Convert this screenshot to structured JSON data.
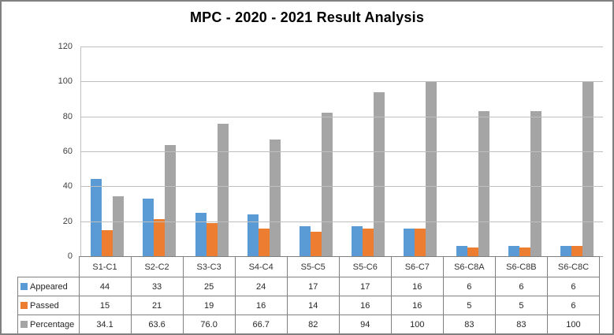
{
  "colors": {
    "appeared": "#5B9BD5",
    "passed": "#ED7D31",
    "percentage": "#A5A5A5",
    "gridline": "#BFBFBF",
    "axis_line": "#A6A6A6",
    "table_border": "#808080",
    "frame_border": "#808080",
    "title_text": "#000000",
    "axis_text": "#404040"
  },
  "chart_data": {
    "type": "bar",
    "title": "MPC - 2020 - 2021 Result Analysis",
    "categories": [
      "S1-C1",
      "S2-C2",
      "S3-C3",
      "S4-C4",
      "S5-C5",
      "S5-C6",
      "S6-C7",
      "S6-C8A",
      "S6-C8B",
      "S6-C8C"
    ],
    "series": [
      {
        "name": "Appeared",
        "color": "#5B9BD5",
        "values": [
          44,
          33,
          25,
          24,
          17,
          17,
          16,
          6,
          6,
          6
        ],
        "table_values": [
          "44",
          "33",
          "25",
          "24",
          "17",
          "17",
          "16",
          "6",
          "6",
          "6"
        ]
      },
      {
        "name": "Passed",
        "color": "#ED7D31",
        "values": [
          15,
          21,
          19,
          16,
          14,
          16,
          16,
          5,
          5,
          6
        ],
        "table_values": [
          "15",
          "21",
          "19",
          "16",
          "14",
          "16",
          "16",
          "5",
          "5",
          "6"
        ]
      },
      {
        "name": "Percentage",
        "color": "#A5A5A5",
        "values": [
          34.1,
          63.6,
          76.0,
          66.7,
          82,
          94,
          100,
          83,
          83,
          100
        ],
        "table_values": [
          "34.1",
          "63.6",
          "76.0",
          "66.7",
          "82",
          "94",
          "100",
          "83",
          "83",
          "100"
        ]
      }
    ],
    "xlabel": "",
    "ylabel": "",
    "ylim": [
      0,
      120
    ],
    "yticks": [
      0,
      20,
      40,
      60,
      80,
      100,
      120
    ],
    "grid": true,
    "legend_position": "data-table-below-chart"
  }
}
